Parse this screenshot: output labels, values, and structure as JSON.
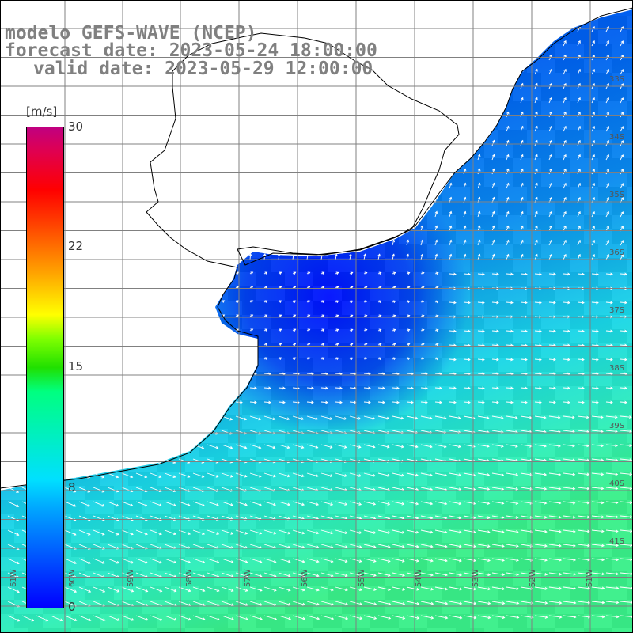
{
  "title": {
    "line1": "modelo GEFS-WAVE (NCEP)",
    "line2": "forecast date: 2023-05-24 18:00:00",
    "line3": "valid date: 2023-05-29 12:00:00"
  },
  "colorbar": {
    "unit": "[m/s]",
    "ticks": [
      "30",
      "22",
      "15",
      "8",
      "0"
    ],
    "colors": [
      "#0000ff",
      "#00a0ff",
      "#00ffff",
      "#00ff00",
      "#ffff00",
      "#ff8000",
      "#ff0000",
      "#c00080"
    ]
  },
  "axes": {
    "lon_labels": [
      "61W",
      "60W",
      "59W",
      "58W",
      "57W",
      "56W",
      "55W",
      "54W",
      "53W",
      "52W",
      "51W"
    ],
    "lat_labels": [
      "33S",
      "34S",
      "35S",
      "36S",
      "37S",
      "38S",
      "39S",
      "40S",
      "41S"
    ]
  },
  "field": {
    "variable": "wind speed and direction",
    "description_colors": {
      "land": "#ffffff",
      "coast": "#000000",
      "grid": "#808080"
    }
  }
}
